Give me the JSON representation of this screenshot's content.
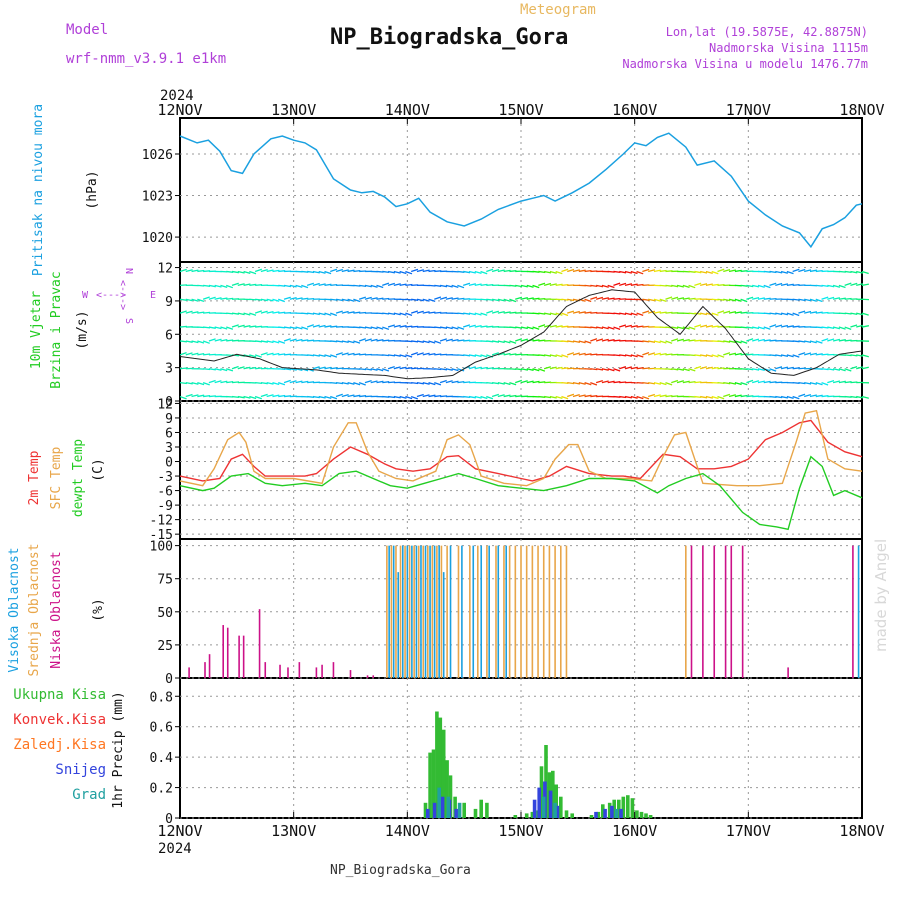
{
  "header": {
    "model_label": "Model",
    "model_name": "wrf-nmm_v3.9.1  e1km",
    "chart_type_label": "Meteogram",
    "station_title": "NP_Biogradska_Gora",
    "lonlat": "Lon,lat (19.5875E, 42.8875N)",
    "elevation": "Nadmorska Visina 1115m",
    "model_elevation": "Nadmorska Visina u modelu 1476.77m",
    "year": "2024",
    "footer_station": "NP_Biogradska_Gora",
    "watermark": "made by Angel"
  },
  "colors": {
    "pressure": "#1aa0e0",
    "temp2m": "#ee3333",
    "sfc_temp": "#e8a64a",
    "dewpoint": "#22cc22",
    "high_cloud": "#1aa0e0",
    "mid_cloud": "#e8a64a",
    "low_cloud": "#cc1188",
    "total_rain": "#33bb33",
    "conv_rain": "#ee3333",
    "frozen_rain": "#ff7722",
    "snow": "#3344dd",
    "graupel": "#20a0a0",
    "title_purple": "#b040d8",
    "meteogram_orange": "#e8b860"
  },
  "chart_data": [
    {
      "type": "line",
      "name": "pressure",
      "ylabel": [
        "Pritisak na nivou mora",
        "(hPa)"
      ],
      "yticks": [
        1020,
        1023,
        1026
      ],
      "ylim": [
        1018.2,
        1028.6
      ],
      "x_days": [
        "12NOV",
        "13NOV",
        "14NOV",
        "15NOV",
        "16NOV",
        "17NOV",
        "18NOV"
      ],
      "series": [
        {
          "x": [
            0,
            0.15,
            0.25,
            0.35,
            0.45,
            0.55,
            0.65,
            0.8,
            0.9,
            1.0,
            1.1,
            1.2,
            1.35,
            1.5,
            1.6,
            1.7,
            1.8,
            1.9,
            2.0,
            2.1,
            2.2,
            2.35,
            2.5,
            2.65,
            2.8,
            3.0,
            3.1,
            3.2,
            3.3,
            3.45,
            3.6,
            3.75,
            3.9,
            4.0,
            4.1,
            4.2,
            4.3,
            4.45,
            4.55,
            4.7,
            4.85,
            5.0,
            5.15,
            5.3,
            5.45,
            5.55,
            5.65,
            5.75,
            5.85,
            5.95,
            6.0
          ],
          "y": [
            1027.3,
            1026.8,
            1027.0,
            1026.2,
            1024.8,
            1024.6,
            1026.0,
            1027.1,
            1027.3,
            1027.0,
            1026.8,
            1026.3,
            1024.2,
            1023.4,
            1023.2,
            1023.3,
            1022.9,
            1022.2,
            1022.4,
            1022.8,
            1021.8,
            1021.1,
            1020.8,
            1021.3,
            1022.0,
            1022.6,
            1022.8,
            1023.0,
            1022.6,
            1023.2,
            1023.9,
            1024.9,
            1026.0,
            1026.8,
            1026.6,
            1027.2,
            1027.5,
            1026.5,
            1025.2,
            1025.5,
            1024.4,
            1022.6,
            1021.6,
            1020.8,
            1020.3,
            1019.3,
            1020.6,
            1020.9,
            1021.4,
            1022.3,
            1022.4
          ],
          "color": "#1aa0e0"
        }
      ]
    },
    {
      "type": "scatter",
      "name": "wind",
      "ylabel": [
        "10m Vjetar",
        "Brzina i Pravac",
        "(m/s)"
      ],
      "compass": [
        "N",
        "S",
        "W",
        "E"
      ],
      "yticks": [
        0,
        3,
        6,
        9,
        12
      ],
      "ylim": [
        0,
        12.5
      ],
      "series": [
        {
          "name": "wind speed",
          "x": [
            0,
            0.3,
            0.5,
            0.7,
            0.9,
            1.2,
            1.4,
            1.6,
            1.8,
            2.0,
            2.2,
            2.4,
            2.6,
            2.8,
            3.0,
            3.2,
            3.4,
            3.6,
            3.8,
            4.0,
            4.2,
            4.4,
            4.6,
            4.8,
            5.0,
            5.2,
            5.4,
            5.6,
            5.8,
            6.0
          ],
          "y": [
            4.0,
            3.6,
            4.2,
            3.8,
            3.0,
            2.8,
            2.5,
            2.4,
            2.3,
            2.0,
            2.1,
            2.3,
            3.5,
            4.2,
            5.0,
            6.2,
            8.5,
            9.5,
            10.0,
            9.8,
            7.5,
            6.0,
            8.5,
            6.5,
            3.8,
            2.5,
            2.3,
            3.0,
            4.2,
            4.5
          ]
        }
      ]
    },
    {
      "type": "line",
      "name": "temperature",
      "ylabel": [
        "2m Temp",
        "SFC Temp",
        "dewpt Temp",
        "(C)"
      ],
      "yticks": [
        -15,
        -12,
        -9,
        -6,
        -3,
        0,
        3,
        6,
        9,
        12
      ],
      "ylim": [
        -16,
        12.5
      ],
      "series": [
        {
          "name": "2m Temp",
          "x": [
            0,
            0.2,
            0.35,
            0.45,
            0.55,
            0.65,
            0.75,
            0.9,
            1.1,
            1.2,
            1.35,
            1.5,
            1.65,
            1.8,
            1.9,
            2.05,
            2.2,
            2.35,
            2.45,
            2.6,
            2.8,
            3.0,
            3.1,
            3.25,
            3.4,
            3.6,
            3.8,
            3.9,
            4.05,
            4.25,
            4.4,
            4.55,
            4.7,
            4.85,
            5.0,
            5.15,
            5.3,
            5.45,
            5.55,
            5.7,
            5.85,
            6.0
          ],
          "y": [
            -3.0,
            -4.0,
            -3.5,
            0.5,
            1.5,
            -1.0,
            -3.0,
            -3.0,
            -3.0,
            -2.5,
            0.5,
            3.0,
            1.5,
            -0.5,
            -1.5,
            -2.0,
            -1.5,
            1.0,
            1.2,
            -1.5,
            -2.5,
            -3.5,
            -4.0,
            -3.0,
            -1.0,
            -2.5,
            -3.0,
            -3.0,
            -3.5,
            1.5,
            1.0,
            -1.5,
            -1.5,
            -1.0,
            0.5,
            4.5,
            6.0,
            8.0,
            8.5,
            4.0,
            2.0,
            1.0
          ],
          "color": "#ee3333"
        },
        {
          "name": "SFC Temp",
          "x": [
            0,
            0.2,
            0.3,
            0.42,
            0.52,
            0.58,
            0.65,
            0.75,
            1.0,
            1.25,
            1.35,
            1.48,
            1.55,
            1.65,
            1.75,
            1.9,
            2.05,
            2.25,
            2.35,
            2.45,
            2.55,
            2.65,
            2.85,
            3.05,
            3.2,
            3.3,
            3.42,
            3.5,
            3.6,
            3.75,
            3.95,
            4.15,
            4.25,
            4.35,
            4.45,
            4.6,
            4.9,
            5.1,
            5.3,
            5.42,
            5.5,
            5.6,
            5.7,
            5.85,
            6.0
          ],
          "y": [
            -4.0,
            -5.0,
            -1.5,
            4.5,
            6.0,
            4.0,
            -2.0,
            -3.5,
            -3.5,
            -4.5,
            3.0,
            8.0,
            8.0,
            2.0,
            -2.0,
            -3.5,
            -4.0,
            -2.0,
            4.5,
            5.5,
            3.5,
            -3.0,
            -4.5,
            -5.0,
            -3.5,
            0.5,
            3.5,
            3.5,
            -2.0,
            -3.5,
            -3.5,
            -4.0,
            1.0,
            5.5,
            6.0,
            -4.5,
            -5.0,
            -5.0,
            -4.5,
            4.0,
            10.0,
            10.5,
            0.5,
            -1.5,
            -2.0
          ],
          "color": "#e8a64a"
        },
        {
          "name": "dewpt Temp",
          "x": [
            0,
            0.2,
            0.3,
            0.45,
            0.6,
            0.75,
            0.9,
            1.1,
            1.25,
            1.4,
            1.55,
            1.7,
            1.85,
            2.0,
            2.15,
            2.3,
            2.45,
            2.6,
            2.8,
            3.0,
            3.2,
            3.4,
            3.6,
            3.8,
            4.0,
            4.2,
            4.3,
            4.45,
            4.6,
            4.75,
            4.95,
            5.1,
            5.25,
            5.35,
            5.45,
            5.55,
            5.65,
            5.75,
            5.85,
            6.0
          ],
          "y": [
            -5.0,
            -6.0,
            -5.5,
            -3.0,
            -2.5,
            -4.5,
            -5.0,
            -4.5,
            -5.0,
            -2.5,
            -2.0,
            -3.5,
            -5.0,
            -5.5,
            -4.5,
            -3.5,
            -2.5,
            -3.5,
            -5.0,
            -5.5,
            -6.0,
            -5.0,
            -3.5,
            -3.5,
            -4.0,
            -6.5,
            -5.0,
            -3.5,
            -2.5,
            -5.0,
            -10.5,
            -13.0,
            -13.5,
            -14.0,
            -5.5,
            1.0,
            -1.0,
            -7.0,
            -6.0,
            -7.5
          ],
          "color": "#22cc22"
        }
      ]
    },
    {
      "type": "bar",
      "name": "cloud",
      "ylabel": [
        "Visoka Oblacnost",
        "Srednja Oblacnost",
        "Niska Oblacnost",
        "(%)"
      ],
      "yticks": [
        0,
        25,
        50,
        75,
        100
      ],
      "ylim": [
        0,
        105
      ],
      "series": [
        {
          "name": "Niska Oblacnost",
          "x": [
            0.08,
            0.22,
            0.26,
            0.38,
            0.42,
            0.52,
            0.56,
            0.7,
            0.75,
            0.88,
            0.95,
            1.05,
            1.2,
            1.25,
            1.35,
            1.5,
            1.65,
            1.7,
            4.5,
            4.6,
            4.7,
            4.8,
            4.85,
            4.95,
            5.35,
            5.92
          ],
          "values": [
            8,
            12,
            18,
            40,
            38,
            32,
            32,
            52,
            12,
            10,
            8,
            12,
            8,
            10,
            12,
            6,
            2,
            2,
            100,
            100,
            100,
            100,
            100,
            100,
            8,
            100
          ],
          "color": "#cc1188"
        },
        {
          "name": "Srednja Oblacnost",
          "x": [
            1.82,
            1.86,
            1.9,
            1.94,
            1.98,
            2.02,
            2.06,
            2.1,
            2.14,
            2.18,
            2.22,
            2.26,
            2.3,
            2.35,
            2.45,
            2.55,
            2.62,
            2.7,
            2.78,
            2.85,
            2.9,
            2.95,
            3.0,
            3.05,
            3.1,
            3.15,
            3.2,
            3.25,
            3.3,
            3.35,
            3.4,
            4.45
          ],
          "values": [
            100,
            100,
            100,
            100,
            100,
            100,
            100,
            100,
            100,
            100,
            100,
            100,
            100,
            100,
            100,
            100,
            100,
            100,
            100,
            100,
            100,
            100,
            100,
            100,
            100,
            100,
            100,
            100,
            100,
            100,
            100,
            100
          ],
          "color": "#e8a64a"
        },
        {
          "name": "Visoka Oblacnost",
          "x": [
            1.84,
            1.88,
            1.92,
            1.96,
            2.0,
            2.04,
            2.08,
            2.12,
            2.16,
            2.2,
            2.24,
            2.28,
            2.32,
            2.38,
            2.48,
            2.58,
            2.65,
            2.72,
            2.8,
            2.87,
            5.97
          ],
          "values": [
            100,
            100,
            80,
            100,
            100,
            100,
            100,
            100,
            100,
            100,
            100,
            100,
            80,
            100,
            100,
            100,
            100,
            100,
            100,
            100,
            100
          ],
          "color": "#1aa0e0"
        }
      ]
    },
    {
      "type": "bar",
      "name": "precipitation",
      "ylabel": [
        "1hr Precip (mm)"
      ],
      "legend": [
        "Ukupna Kisa",
        "Konvek.Kisa",
        "Zaledj.Kisa",
        "Snijeg",
        "Grad"
      ],
      "yticks": [
        0,
        0.2,
        0.4,
        0.6,
        0.8
      ],
      "ylim": [
        0,
        0.92
      ],
      "series": [
        {
          "name": "Ukupna Kisa",
          "x": [
            2.16,
            2.2,
            2.23,
            2.26,
            2.29,
            2.32,
            2.35,
            2.38,
            2.42,
            2.5,
            2.6,
            2.65,
            2.7,
            2.95,
            3.05,
            3.1,
            3.15,
            3.18,
            3.22,
            3.25,
            3.28,
            3.31,
            3.35,
            3.4,
            3.45,
            3.62,
            3.68,
            3.72,
            3.78,
            3.82,
            3.86,
            3.9,
            3.94,
            3.98,
            4.02,
            4.06,
            4.1,
            4.14
          ],
          "values": [
            0.1,
            0.43,
            0.45,
            0.7,
            0.66,
            0.58,
            0.38,
            0.28,
            0.14,
            0.1,
            0.06,
            0.12,
            0.1,
            0.02,
            0.03,
            0.04,
            0.05,
            0.34,
            0.48,
            0.3,
            0.31,
            0.22,
            0.14,
            0.05,
            0.03,
            0.02,
            0.04,
            0.09,
            0.1,
            0.12,
            0.12,
            0.14,
            0.15,
            0.13,
            0.05,
            0.04,
            0.03,
            0.02
          ],
          "color": "#33bb33"
        },
        {
          "name": "Snijeg",
          "x": [
            2.18,
            2.24,
            2.31,
            2.37,
            2.43,
            3.12,
            3.16,
            3.21,
            3.26,
            3.32,
            3.66,
            3.74,
            3.8,
            3.88
          ],
          "values": [
            0.06,
            0.1,
            0.14,
            0.12,
            0.06,
            0.12,
            0.2,
            0.24,
            0.18,
            0.08,
            0.04,
            0.06,
            0.08,
            0.06
          ],
          "color": "#3344dd"
        },
        {
          "name": "Grad",
          "x": [
            2.28,
            2.36,
            2.46,
            3.2,
            3.3,
            3.84
          ],
          "values": [
            0.2,
            0.14,
            0.1,
            0.14,
            0.1,
            0.06
          ],
          "color": "#20a0a0"
        }
      ]
    }
  ]
}
